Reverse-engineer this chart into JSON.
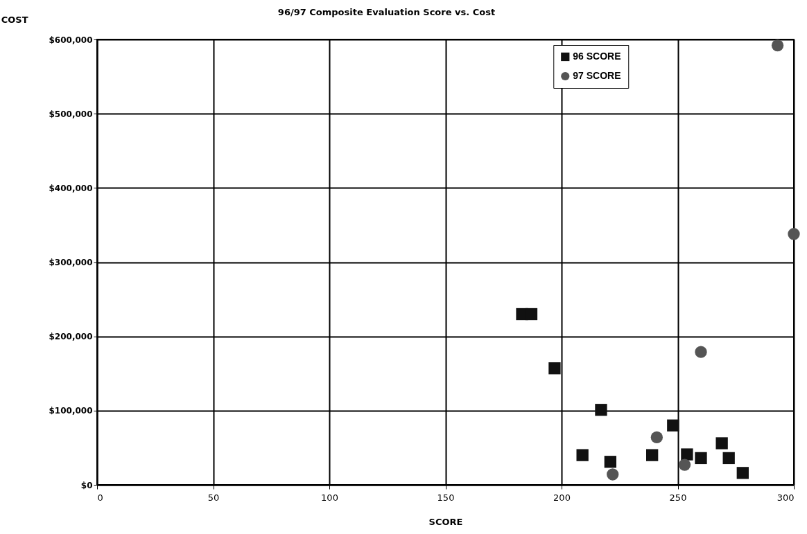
{
  "chart_data": {
    "type": "scatter",
    "title": "96/97 Composite Evaluation Score vs. Cost",
    "xlabel": "SCORE",
    "ylabel": "COST",
    "xlim": [
      0,
      300
    ],
    "xticks": [
      0,
      50,
      100,
      150,
      200,
      250,
      300
    ],
    "ylim": [
      0,
      600000
    ],
    "yticks": [
      {
        "value": 0,
        "label": "$0"
      },
      {
        "value": 100000,
        "label": "$100,000"
      },
      {
        "value": 200000,
        "label": "$200,000"
      },
      {
        "value": 300000,
        "label": "$300,000"
      },
      {
        "value": 400000,
        "label": "$400,000"
      },
      {
        "value": 500000,
        "label": "$500,000"
      },
      {
        "value": 600000,
        "label": "$600,000"
      }
    ],
    "grid": true,
    "legend": "top right",
    "series": [
      {
        "name": "96 SCORE",
        "color": "#111111",
        "marker": "square",
        "x": [
          183,
          187,
          197,
          217,
          209,
          221,
          239,
          248,
          254,
          260,
          269,
          272,
          278
        ],
        "values": [
          230000,
          230000,
          157000,
          101000,
          40000,
          31000,
          40000,
          80000,
          41000,
          36000,
          56000,
          36000,
          16000
        ]
      },
      {
        "name": "97 SCORE",
        "color": "#555555",
        "marker": "circle",
        "x": [
          222,
          241,
          253,
          260,
          293,
          300
        ],
        "values": [
          14000,
          64000,
          27000,
          179000,
          592000,
          338000
        ]
      }
    ]
  }
}
